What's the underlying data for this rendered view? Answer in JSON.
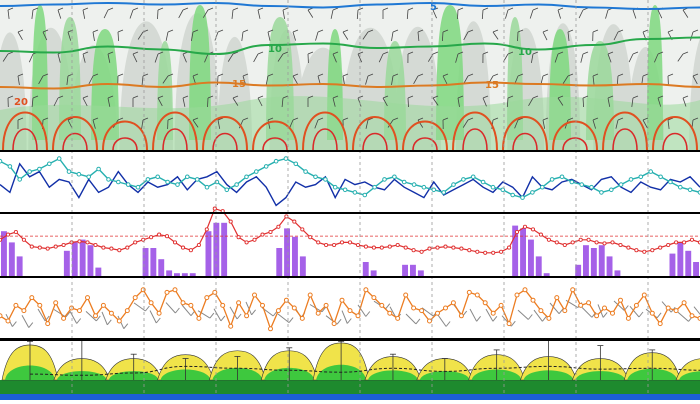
{
  "colors": {
    "background": "#ffffff",
    "panel_border": "#000000",
    "gridline": "#9a9a9a",
    "cloud_grey": "#d5dad5",
    "precip_green": "#9ad89a",
    "precip_bright": "#7ed87e",
    "dry_bg": "#eef1ee",
    "contour_5": "#1f78d4",
    "contour_10": "#27a84a",
    "contour_15": "#dc7a22",
    "contour_20": "#e05020",
    "contour_25": "#d92a2a",
    "navy_line": "#1230a8",
    "teal_line": "#27b0b0",
    "red_line": "#e03030",
    "purple_bar": "#a561e8",
    "orange_line": "#ec7d22",
    "barb_grey": "#888888",
    "mountain_yellow": "#f0e34a",
    "mountain_green": "#3ec83e",
    "mountain_dark": "#1e8a2e",
    "baseline_blue": "#1c5fd8"
  },
  "chart_data": [
    {
      "type": "heatmap",
      "panel": "vertical-cross-section",
      "contour_labels": [
        "5",
        "10",
        "15",
        "10",
        "15",
        "20"
      ],
      "contours": [
        {
          "name": "5",
          "level": 5,
          "values": [
            0.04,
            0.03,
            0.02,
            0.03,
            0.02,
            0.04,
            0.05,
            0.03,
            0.02,
            0.04,
            0.03,
            0.05,
            0.06,
            0.05
          ]
        },
        {
          "name": "10",
          "level": 10,
          "values": [
            0.34,
            0.35,
            0.31,
            0.33,
            0.36,
            0.3,
            0.29,
            0.32,
            0.31,
            0.29,
            0.33,
            0.3,
            0.26,
            0.25
          ]
        },
        {
          "name": "15",
          "level": 15,
          "values": [
            0.58,
            0.59,
            0.56,
            0.58,
            0.55,
            0.57,
            0.56,
            0.58,
            0.57,
            0.55,
            0.56,
            0.57,
            0.56,
            0.58
          ]
        }
      ],
      "warm_peaks": [
        0.5,
        1.5,
        2.5,
        3.5,
        4.5,
        5.5,
        6.5,
        7.5,
        8.5,
        9.5,
        10.5,
        11.5,
        12.5,
        13.5
      ],
      "precip_columns": [
        0.8,
        1.4,
        2.1,
        3.3,
        4.0,
        5.6,
        6.7,
        7.9,
        9.0,
        10.3,
        11.2,
        12.0,
        13.1
      ]
    },
    {
      "type": "line",
      "panel": "two-lines",
      "ylim": [
        0,
        1
      ],
      "series": [
        {
          "color_key": "navy_line",
          "values": [
            0.45,
            0.3,
            0.85,
            0.6,
            0.7,
            0.4,
            0.55,
            0.5,
            0.2,
            0.55,
            0.3,
            0.4,
            0.7,
            0.45,
            0.3,
            0.5,
            0.4,
            0.45,
            0.6,
            0.35,
            0.55,
            0.6,
            0.7,
            0.45,
            0.3,
            0.5,
            0.6,
            0.4,
            0.05,
            0.2,
            0.5,
            0.4,
            0.45,
            0.6,
            0.2,
            0.55,
            0.45,
            0.5,
            0.4,
            0.35,
            0.55,
            0.4,
            0.3,
            0.2,
            0.5,
            0.25,
            0.35,
            0.45,
            0.55,
            0.4,
            0.3,
            0.5,
            0.4,
            0.2,
            0.6,
            0.4,
            0.35,
            0.5,
            0.55,
            0.45,
            0.35,
            0.55,
            0.6,
            0.4,
            0.3,
            0.5,
            0.4,
            0.35,
            0.55,
            0.5,
            0.6,
            0.4
          ]
        },
        {
          "color_key": "teal_line",
          "values": [
            0.9,
            0.8,
            0.55,
            0.7,
            0.75,
            0.85,
            0.95,
            0.7,
            0.65,
            0.6,
            0.75,
            0.55,
            0.5,
            0.45,
            0.4,
            0.55,
            0.6,
            0.5,
            0.45,
            0.6,
            0.55,
            0.4,
            0.5,
            0.35,
            0.45,
            0.6,
            0.7,
            0.8,
            0.9,
            0.95,
            0.85,
            0.7,
            0.6,
            0.55,
            0.4,
            0.35,
            0.3,
            0.25,
            0.4,
            0.55,
            0.6,
            0.5,
            0.45,
            0.4,
            0.35,
            0.3,
            0.45,
            0.55,
            0.6,
            0.5,
            0.4,
            0.35,
            0.25,
            0.2,
            0.3,
            0.4,
            0.55,
            0.6,
            0.5,
            0.45,
            0.4,
            0.3,
            0.35,
            0.45,
            0.55,
            0.6,
            0.7,
            0.6,
            0.5,
            0.4,
            0.35,
            0.3
          ]
        }
      ]
    },
    {
      "type": "bar",
      "panel": "bars-with-line",
      "ylim": [
        0,
        1
      ],
      "reference_line": 0.32,
      "bars": [
        0.8,
        0.6,
        0.35,
        0,
        0,
        0,
        0,
        0,
        0.45,
        0.6,
        0.65,
        0.55,
        0.15,
        0,
        0,
        0,
        0,
        0,
        0.5,
        0.5,
        0.3,
        0.1,
        0.05,
        0.05,
        0.05,
        0.0,
        0.8,
        0.95,
        0.95,
        0,
        0,
        0,
        0,
        0,
        0,
        0.5,
        0.85,
        0.7,
        0.35,
        0,
        0,
        0,
        0,
        0,
        0,
        0,
        0.25,
        0.1,
        0,
        0,
        0,
        0.2,
        0.2,
        0.1,
        0,
        0,
        0,
        0,
        0,
        0,
        0,
        0,
        0,
        0,
        0,
        0.9,
        0.85,
        0.65,
        0.35,
        0.05,
        0,
        0,
        0,
        0.2,
        0.55,
        0.5,
        0.55,
        0.35,
        0.1,
        0,
        0,
        0,
        0,
        0,
        0,
        0.4,
        0.6,
        0.45,
        0.25
      ],
      "line": [
        0.35,
        0.45,
        0.5,
        0.35,
        0.22,
        0.2,
        0.18,
        0.22,
        0.25,
        0.3,
        0.32,
        0.3,
        0.25,
        0.2,
        0.18,
        0.15,
        0.2,
        0.3,
        0.35,
        0.4,
        0.45,
        0.42,
        0.3,
        0.2,
        0.15,
        0.25,
        0.55,
        0.95,
        0.9,
        0.7,
        0.4,
        0.3,
        0.35,
        0.45,
        0.5,
        0.6,
        0.8,
        0.7,
        0.55,
        0.4,
        0.3,
        0.25,
        0.25,
        0.3,
        0.3,
        0.25,
        0.22,
        0.2,
        0.2,
        0.22,
        0.25,
        0.2,
        0.15,
        0.12,
        0.18,
        0.2,
        0.22,
        0.2,
        0.18,
        0.15,
        0.12,
        0.1,
        0.1,
        0.12,
        0.2,
        0.5,
        0.6,
        0.55,
        0.45,
        0.35,
        0.3,
        0.25,
        0.3,
        0.35,
        0.35,
        0.3,
        0.28,
        0.3,
        0.25,
        0.2,
        0.15,
        0.12,
        0.15,
        0.2,
        0.25,
        0.3,
        0.3,
        0.35,
        0.3
      ]
    },
    {
      "type": "line",
      "panel": "orange-with-barbs",
      "ylim": [
        0,
        1
      ],
      "values": [
        0.35,
        0.25,
        0.55,
        0.45,
        0.7,
        0.55,
        0.2,
        0.6,
        0.3,
        0.5,
        0.45,
        0.7,
        0.35,
        0.55,
        0.4,
        0.25,
        0.45,
        0.7,
        0.85,
        0.6,
        0.4,
        0.8,
        0.85,
        0.6,
        0.55,
        0.3,
        0.7,
        0.8,
        0.55,
        0.15,
        0.6,
        0.35,
        0.75,
        0.55,
        0.1,
        0.45,
        0.65,
        0.5,
        0.3,
        0.75,
        0.4,
        0.55,
        0.2,
        0.65,
        0.45,
        0.35,
        0.85,
        0.7,
        0.55,
        0.4,
        0.3,
        0.75,
        0.5,
        0.45,
        0.25,
        0.4,
        0.5,
        0.6,
        0.35,
        0.8,
        0.75,
        0.6,
        0.4,
        0.55,
        0.2,
        0.75,
        0.85,
        0.65,
        0.45,
        0.3,
        0.7,
        0.45,
        0.85,
        0.55,
        0.6,
        0.35,
        0.5,
        0.4,
        0.65,
        0.3,
        0.55,
        0.75,
        0.4,
        0.2,
        0.5,
        0.45,
        0.6,
        0.35,
        0.3
      ],
      "barb_count": 44
    },
    {
      "type": "area",
      "panel": "mountain-profile",
      "ylim": [
        0,
        1
      ],
      "peaks": [
        0.9,
        0.55,
        0.55,
        0.65,
        0.75,
        0.75,
        0.95,
        0.6,
        0.55,
        0.65,
        0.6,
        0.55,
        0.7,
        0.55
      ],
      "dashed_trend": [
        0.15,
        0.12,
        0.18,
        0.35,
        0.3,
        0.25,
        0.2,
        0.3,
        0.22,
        0.3,
        0.35,
        0.28,
        0.3,
        0.25
      ],
      "whiskers": [
        0.9,
        1.0,
        0.6,
        0.5,
        0.55,
        0.75,
        0.9,
        0.6,
        0.5,
        0.7,
        1.0,
        0.8,
        0.7,
        0.6
      ]
    }
  ]
}
